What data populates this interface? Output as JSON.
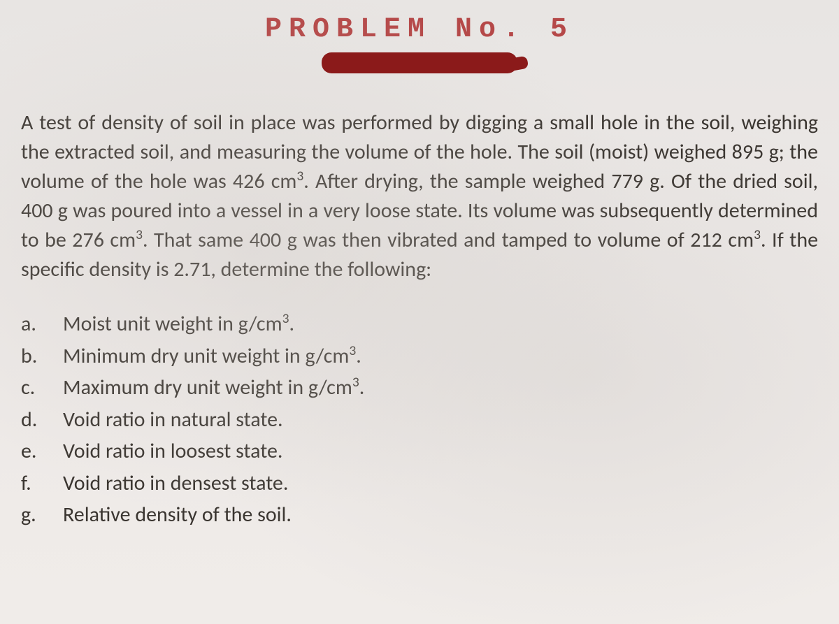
{
  "title": "PROBLEM No. 5",
  "colors": {
    "title_color": "#b54848",
    "redaction_color": "#8b1a1a",
    "text_color": "#3a3530",
    "background_color": "#ede9e7"
  },
  "typography": {
    "title_fontsize": 40,
    "title_letter_spacing": 10,
    "body_fontsize": 30,
    "body_line_height": 1.4
  },
  "problem_text": "A test of density of soil in place was performed by digging a small hole in the soil, weighing the extracted soil, and measuring the volume of the hole. The soil (moist) weighed 895 g; the volume of the hole was 426 cm³. After drying, the sample weighed 779 g. Of the dried soil, 400 g was poured into a vessel in a very loose state. Its volume was subsequently determined to be 276 cm³. That same 400 g was then vibrated and tamped to volume of 212 cm³. If the specific density is 2.71, determine the following:",
  "items": [
    {
      "letter": "a.",
      "text": "Moist unit weight in g/cm³."
    },
    {
      "letter": "b.",
      "text": "Minimum dry unit weight in g/cm³."
    },
    {
      "letter": "c.",
      "text": "Maximum dry unit weight in g/cm³."
    },
    {
      "letter": "d.",
      "text": "Void ratio in natural state."
    },
    {
      "letter": "e.",
      "text": "Void ratio in loosest state."
    },
    {
      "letter": "f.",
      "text": "Void ratio in densest state."
    },
    {
      "letter": "g.",
      "text": "Relative density of the soil."
    }
  ],
  "data_values": {
    "moist_weight_g": 895,
    "hole_volume_cm3": 426,
    "dry_weight_g": 779,
    "poured_weight_g": 400,
    "loose_volume_cm3": 276,
    "dense_volume_cm3": 212,
    "specific_density": 2.71
  }
}
